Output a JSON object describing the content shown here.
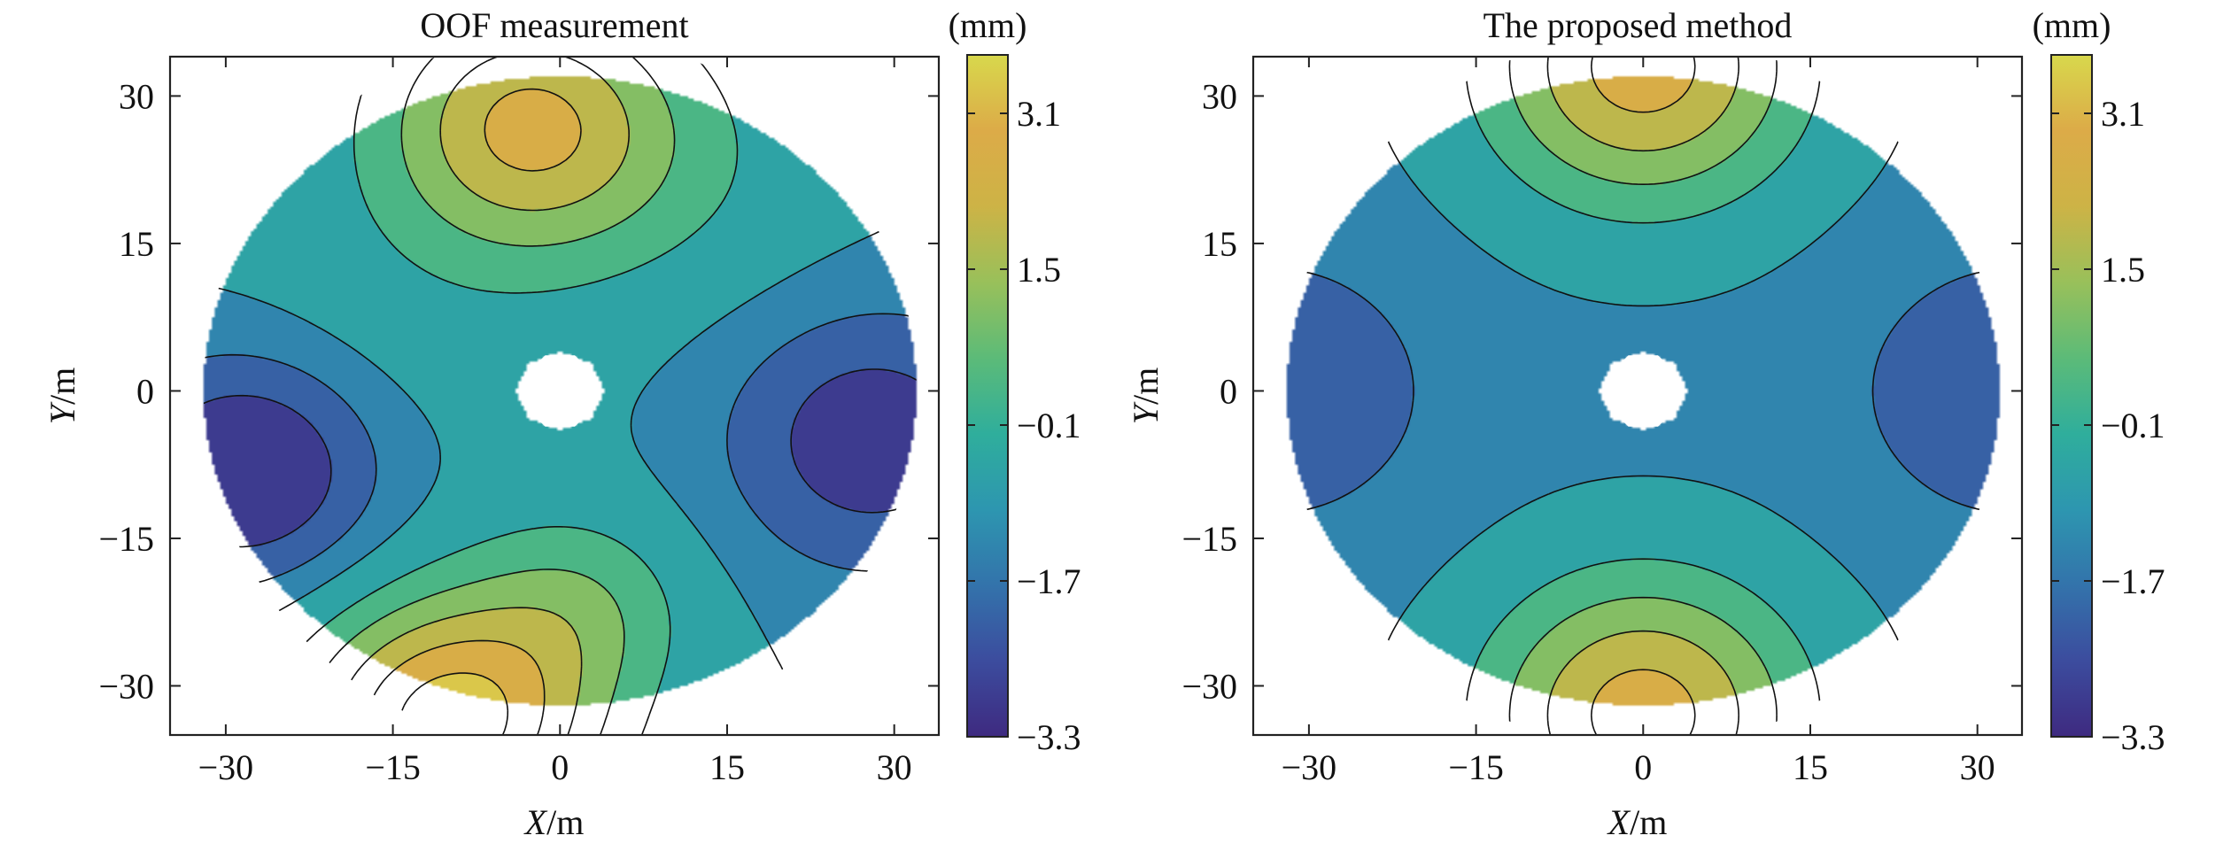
{
  "chart_data": [
    {
      "type": "heatmap",
      "title": "OOF measurement",
      "xlabel_var": "X",
      "xlabel_unit": "/m",
      "ylabel_var": "Y",
      "ylabel_unit": "/m",
      "xlim": [
        -35,
        34
      ],
      "ylim": [
        -35,
        34
      ],
      "xticks": [
        -30,
        -15,
        0,
        15,
        30
      ],
      "yticks": [
        -30,
        -15,
        0,
        15,
        30
      ],
      "aperture_radius": 32,
      "central_hole_radius": 3.3,
      "colorbar": {
        "unit": "(mm)",
        "min": -3.3,
        "max": 3.7,
        "ticks": [
          -3.3,
          -1.7,
          -0.1,
          1.5,
          3.1
        ],
        "tick_labels": [
          "−3.3",
          "−1.7",
          "−0.1",
          "1.5",
          "3.1"
        ]
      },
      "contour_levels": [
        -2.5,
        -1.7,
        -1.0,
        -0.1,
        0.7,
        1.5,
        2.3,
        3.1
      ],
      "surface_model": {
        "offset": -1.0,
        "gaussians": [
          {
            "x": -28,
            "y": -8,
            "amp": -2.6,
            "sigma": 8
          },
          {
            "x": 28,
            "y": -5,
            "amp": -2.1,
            "sigma": 9
          },
          {
            "x": -3,
            "y": 27,
            "amp": 3.4,
            "sigma": 9
          },
          {
            "x": -10,
            "y": -34,
            "amp": 4.6,
            "sigma": 9
          },
          {
            "x": 2,
            "y": -22,
            "amp": 1.4,
            "sigma": 7
          },
          {
            "x": -15,
            "y": 8,
            "amp": 0.4,
            "sigma": 12
          },
          {
            "x": 12,
            "y": 22,
            "amp": 0.6,
            "sigma": 10
          }
        ]
      }
    },
    {
      "type": "heatmap",
      "title": "The proposed method",
      "xlabel_var": "X",
      "xlabel_unit": "/m",
      "ylabel_var": "Y",
      "ylabel_unit": "/m",
      "xlim": [
        -35,
        34
      ],
      "ylim": [
        -35,
        34
      ],
      "xticks": [
        -30,
        -15,
        0,
        15,
        30
      ],
      "yticks": [
        -30,
        -15,
        0,
        15,
        30
      ],
      "aperture_radius": 32,
      "central_hole_radius": 3.3,
      "colorbar": {
        "unit": "(mm)",
        "min": -3.3,
        "max": 3.7,
        "ticks": [
          -3.3,
          -1.7,
          -0.1,
          1.5,
          3.1
        ],
        "tick_labels": [
          "−3.3",
          "−1.7",
          "−0.1",
          "1.5",
          "3.1"
        ]
      },
      "contour_levels": [
        -2.5,
        -1.7,
        -1.0,
        -0.1,
        0.7,
        1.5,
        2.3,
        3.1
      ],
      "surface_model": {
        "offset": -1.2,
        "gaussians": [
          {
            "x": 0,
            "y": 33,
            "amp": 3.9,
            "sigma": 10
          },
          {
            "x": 0,
            "y": -33,
            "amp": 3.9,
            "sigma": 10
          },
          {
            "x": -33,
            "y": 0,
            "amp": -1.3,
            "sigma": 9
          },
          {
            "x": 33,
            "y": 0,
            "amp": -1.3,
            "sigma": 9
          }
        ]
      }
    }
  ],
  "colors": {
    "colormap": [
      "#3e2a80",
      "#3c4c9e",
      "#3373ab",
      "#2d96b0",
      "#2fae9c",
      "#5cbb78",
      "#99c05a",
      "#cdb346",
      "#dcab48",
      "#d8d84c"
    ],
    "frame": "#222222",
    "contour": "#111111"
  }
}
